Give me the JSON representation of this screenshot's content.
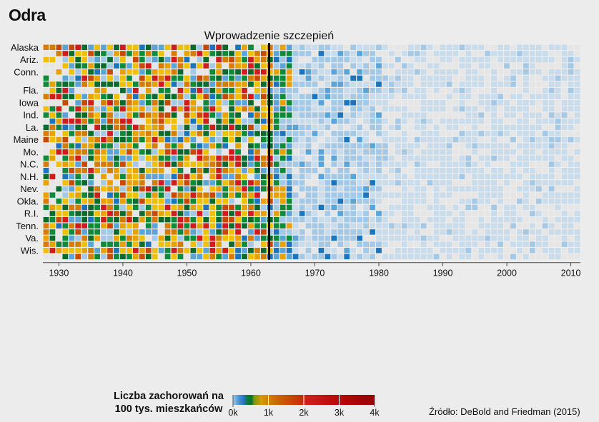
{
  "title": "Odra",
  "chart_data": {
    "type": "heatmap",
    "title": "Odra",
    "x_range": [
      1928,
      2012
    ],
    "xticks": [
      1930,
      1940,
      1950,
      1960,
      1970,
      1980,
      1990,
      2000,
      2010
    ],
    "state_labels": [
      {
        "row": 0,
        "name": "Alaska"
      },
      {
        "row": 2,
        "name": "Ariz."
      },
      {
        "row": 4,
        "name": "Conn."
      },
      {
        "row": 7,
        "name": "Fla."
      },
      {
        "row": 9,
        "name": "Iowa"
      },
      {
        "row": 11,
        "name": "Ind."
      },
      {
        "row": 13,
        "name": "La."
      },
      {
        "row": 15,
        "name": "Maine"
      },
      {
        "row": 17,
        "name": "Mo."
      },
      {
        "row": 19,
        "name": "N.C."
      },
      {
        "row": 21,
        "name": "N.H."
      },
      {
        "row": 23,
        "name": "Nev."
      },
      {
        "row": 25,
        "name": "Okla."
      },
      {
        "row": 27,
        "name": "R.I."
      },
      {
        "row": 29,
        "name": "Tenn."
      },
      {
        "row": 31,
        "name": "Va."
      },
      {
        "row": 33,
        "name": "Wis."
      }
    ],
    "row_count": 35,
    "annotation": {
      "text": "Wprowadzenie szczepień",
      "year": 1963
    },
    "legend": {
      "title_line1": "Liczba zachorowań na",
      "title_line2": "100 tys. mieszkańców",
      "ticks": [
        "0k",
        "1k",
        "2k",
        "3k",
        "4k"
      ],
      "max": 4000
    },
    "colorscale": [
      "#e6e6e6",
      "#c9dcec",
      "#a4c9e6",
      "#5aa4d8",
      "#1c74bc",
      "#0f8a3a",
      "#0a6b2d",
      "#e8a200",
      "#f0c000",
      "#d67d00",
      "#c84a00",
      "#d01c1c",
      "#a00000"
    ],
    "source": "Źródło: DeBold and Friedman (2015)"
  }
}
